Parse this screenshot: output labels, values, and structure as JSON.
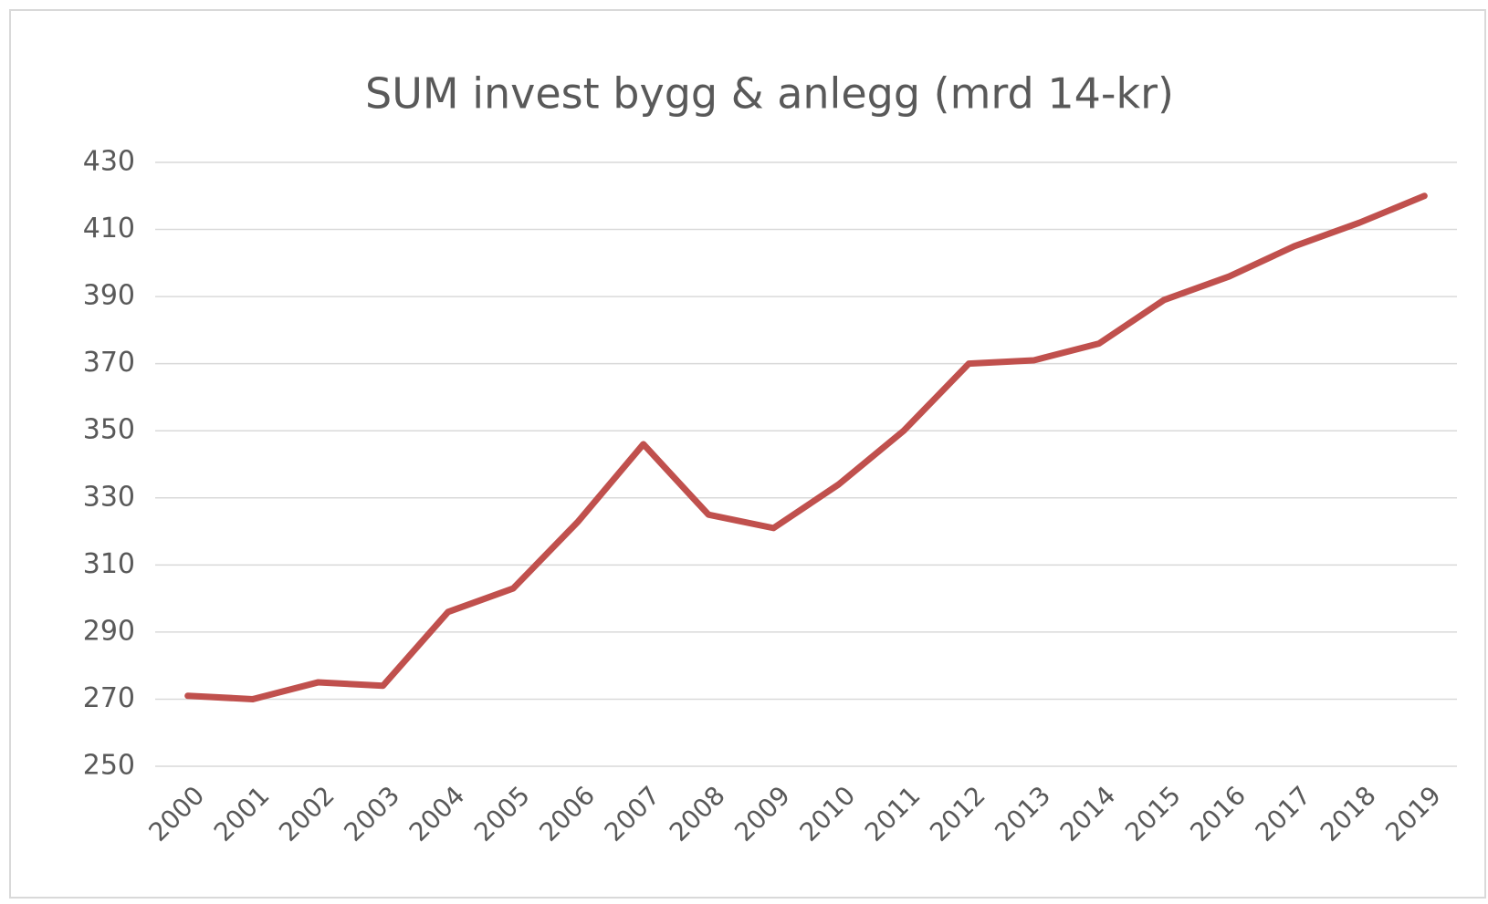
{
  "chart_data": {
    "type": "line",
    "title": "SUM invest bygg & anlegg (mrd 14-kr)",
    "categories": [
      "2000",
      "2001",
      "2002",
      "2003",
      "2004",
      "2005",
      "2006",
      "2007",
      "2008",
      "2009",
      "2010",
      "2011",
      "2012",
      "2013",
      "2014",
      "2015",
      "2016",
      "2017",
      "2018",
      "2019"
    ],
    "series": [
      {
        "name": "SUM invest bygg & anlegg",
        "color": "#c0504d",
        "values": [
          271,
          270,
          275,
          274,
          296,
          303,
          323,
          346,
          325,
          321,
          334,
          350,
          370,
          371,
          376,
          389,
          396,
          405,
          412,
          420
        ]
      }
    ],
    "ylim": [
      250,
      430
    ],
    "yticks": [
      250,
      270,
      290,
      310,
      330,
      350,
      370,
      390,
      410,
      430
    ],
    "grid": true
  }
}
